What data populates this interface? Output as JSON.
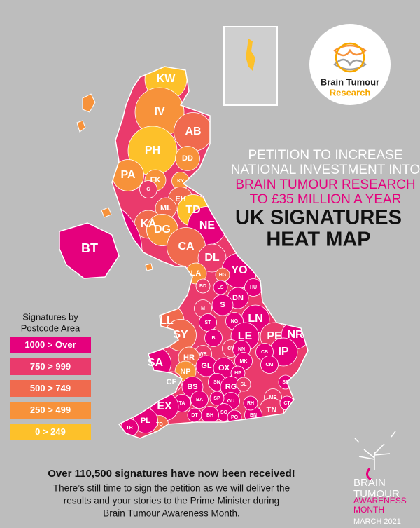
{
  "logo": {
    "line1": "Brain Tumour",
    "line2": "Research"
  },
  "header": {
    "lines": [
      "PETITION TO INCREASE",
      "NATIONAL INVESTMENT INTO",
      "BRAIN TUMOUR RESEARCH",
      "TO £35 MILLION A YEAR"
    ],
    "heading": [
      "UK SIGNATURES",
      "HEAT MAP"
    ]
  },
  "legend": {
    "title": [
      "Signatures by",
      "Postcode Area"
    ],
    "items": [
      {
        "label": "1000 > Over",
        "color": "#e5007d"
      },
      {
        "label": "750 > 999",
        "color": "#ea3a6c"
      },
      {
        "label": "500 > 749",
        "color": "#f06a4e"
      },
      {
        "label": "250 > 499",
        "color": "#f7923a"
      },
      {
        "label": "0 > 249",
        "color": "#fdc12a"
      }
    ]
  },
  "areas": [
    {
      "label": "KW",
      "color": "#fdc12a"
    },
    {
      "label": "IV",
      "color": "#f7923a"
    },
    {
      "label": "AB",
      "color": "#f06a4e"
    },
    {
      "label": "PH",
      "color": "#fdc12a"
    },
    {
      "label": "DD",
      "color": "#f7923a"
    },
    {
      "label": "PA",
      "color": "#f7923a"
    },
    {
      "label": "FK",
      "color": "#f7923a"
    },
    {
      "label": "KY",
      "color": "#f7923a"
    },
    {
      "label": "G",
      "color": "#ea3a6c"
    },
    {
      "label": "EH",
      "color": "#f06a4e"
    },
    {
      "label": "ML",
      "color": "#f06a4e"
    },
    {
      "label": "TD",
      "color": "#fdc12a"
    },
    {
      "label": "KA",
      "color": "#f06a4e"
    },
    {
      "label": "DG",
      "color": "#f7923a"
    },
    {
      "label": "NE",
      "color": "#e5007d"
    },
    {
      "label": "CA",
      "color": "#f06a4e"
    },
    {
      "label": "DL",
      "color": "#ea3a6c"
    },
    {
      "label": "YO",
      "color": "#e5007d"
    },
    {
      "label": "LA",
      "color": "#f7923a"
    },
    {
      "label": "HG",
      "color": "#f06a4e"
    },
    {
      "label": "BD",
      "color": "#ea3a6c"
    },
    {
      "label": "LS",
      "color": "#e5007d"
    },
    {
      "label": "HU",
      "color": "#e5007d"
    },
    {
      "label": "DN",
      "color": "#e5007d"
    },
    {
      "label": "M",
      "color": "#ea3a6c"
    },
    {
      "label": "S",
      "color": "#e5007d"
    },
    {
      "label": "LN",
      "color": "#e5007d"
    },
    {
      "label": "LL",
      "color": "#f06a4e"
    },
    {
      "label": "NG",
      "color": "#e5007d"
    },
    {
      "label": "ST",
      "color": "#e5007d"
    },
    {
      "label": "SY",
      "color": "#f06a4e"
    },
    {
      "label": "LE",
      "color": "#e5007d"
    },
    {
      "label": "PE",
      "color": "#ea3a6c"
    },
    {
      "label": "NR",
      "color": "#e5007d"
    },
    {
      "label": "B",
      "color": "#e5007d"
    },
    {
      "label": "IP",
      "color": "#e5007d"
    },
    {
      "label": "CV",
      "color": "#ea3a6c"
    },
    {
      "label": "NN",
      "color": "#e5007d"
    },
    {
      "label": "WR",
      "color": "#ea3a6c"
    },
    {
      "label": "HR",
      "color": "#f06a4e"
    },
    {
      "label": "CB",
      "color": "#e5007d"
    },
    {
      "label": "MK",
      "color": "#e5007d"
    },
    {
      "label": "SA",
      "color": "#e5007d"
    },
    {
      "label": "GL",
      "color": "#e5007d"
    },
    {
      "label": "OX",
      "color": "#e5007d"
    },
    {
      "label": "NP",
      "color": "#f7923a"
    },
    {
      "label": "CF",
      "color": "#ea3a6c"
    },
    {
      "label": "HP",
      "color": "#e5007d"
    },
    {
      "label": "CM",
      "color": "#e5007d"
    },
    {
      "label": "BS",
      "color": "#e5007d"
    },
    {
      "label": "SN",
      "color": "#e5007d"
    },
    {
      "label": "RG",
      "color": "#e5007d"
    },
    {
      "label": "SL",
      "color": "#ea3a6c"
    },
    {
      "label": "SS",
      "color": "#e5007d"
    },
    {
      "label": "ME",
      "color": "#ea3a6c"
    },
    {
      "label": "TN",
      "color": "#ea3a6c"
    },
    {
      "label": "CT",
      "color": "#e5007d"
    },
    {
      "label": "GU",
      "color": "#e5007d"
    },
    {
      "label": "SO",
      "color": "#e5007d"
    },
    {
      "label": "BH",
      "color": "#e5007d"
    },
    {
      "label": "BN",
      "color": "#e5007d"
    },
    {
      "label": "RH",
      "color": "#e5007d"
    },
    {
      "label": "PO",
      "color": "#e5007d"
    },
    {
      "label": "SP",
      "color": "#e5007d"
    },
    {
      "label": "BA",
      "color": "#e5007d"
    },
    {
      "label": "TA",
      "color": "#e5007d"
    },
    {
      "label": "EX",
      "color": "#e5007d"
    },
    {
      "label": "DT",
      "color": "#e5007d"
    },
    {
      "label": "TQ",
      "color": "#f06a4e"
    },
    {
      "label": "PL",
      "color": "#e5007d"
    },
    {
      "label": "TR",
      "color": "#e5007d"
    },
    {
      "label": "BT",
      "color": "#e5007d"
    }
  ],
  "footer": {
    "headline": "Over 110,500 signatures have now been received!",
    "body": [
      "There’s still time to sign the petition as we will deliver the",
      "results and your stories to the Prime Minister during",
      "Brain Tumour Awareness Month."
    ]
  },
  "awareness": {
    "lines": [
      "BRAIN",
      "TUMOUR",
      "AWARENESS",
      "MONTH"
    ],
    "date": "MARCH 2021"
  }
}
